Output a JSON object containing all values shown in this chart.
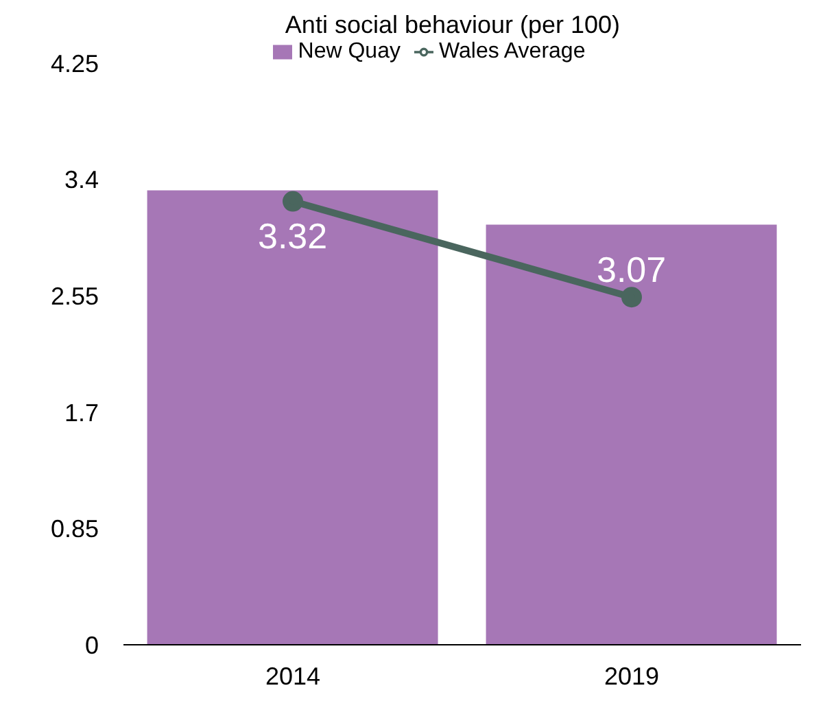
{
  "chart_data": {
    "type": "bar",
    "title": "Anti social behaviour (per 100)",
    "categories": [
      "2014",
      "2019"
    ],
    "series": [
      {
        "name": "New Quay",
        "color": "#a677b6",
        "values": [
          3.32,
          3.07
        ],
        "value_labels": [
          "3.32",
          "3.07"
        ]
      },
      {
        "name": "Wales Average",
        "type": "line",
        "color": "#4a665e",
        "values": [
          3.24,
          2.54
        ],
        "marker": "circle"
      }
    ],
    "ylim": [
      0,
      4.25
    ],
    "yticks": [
      0,
      0.85,
      1.7,
      2.55,
      3.4,
      4.25
    ],
    "legend": "top"
  }
}
